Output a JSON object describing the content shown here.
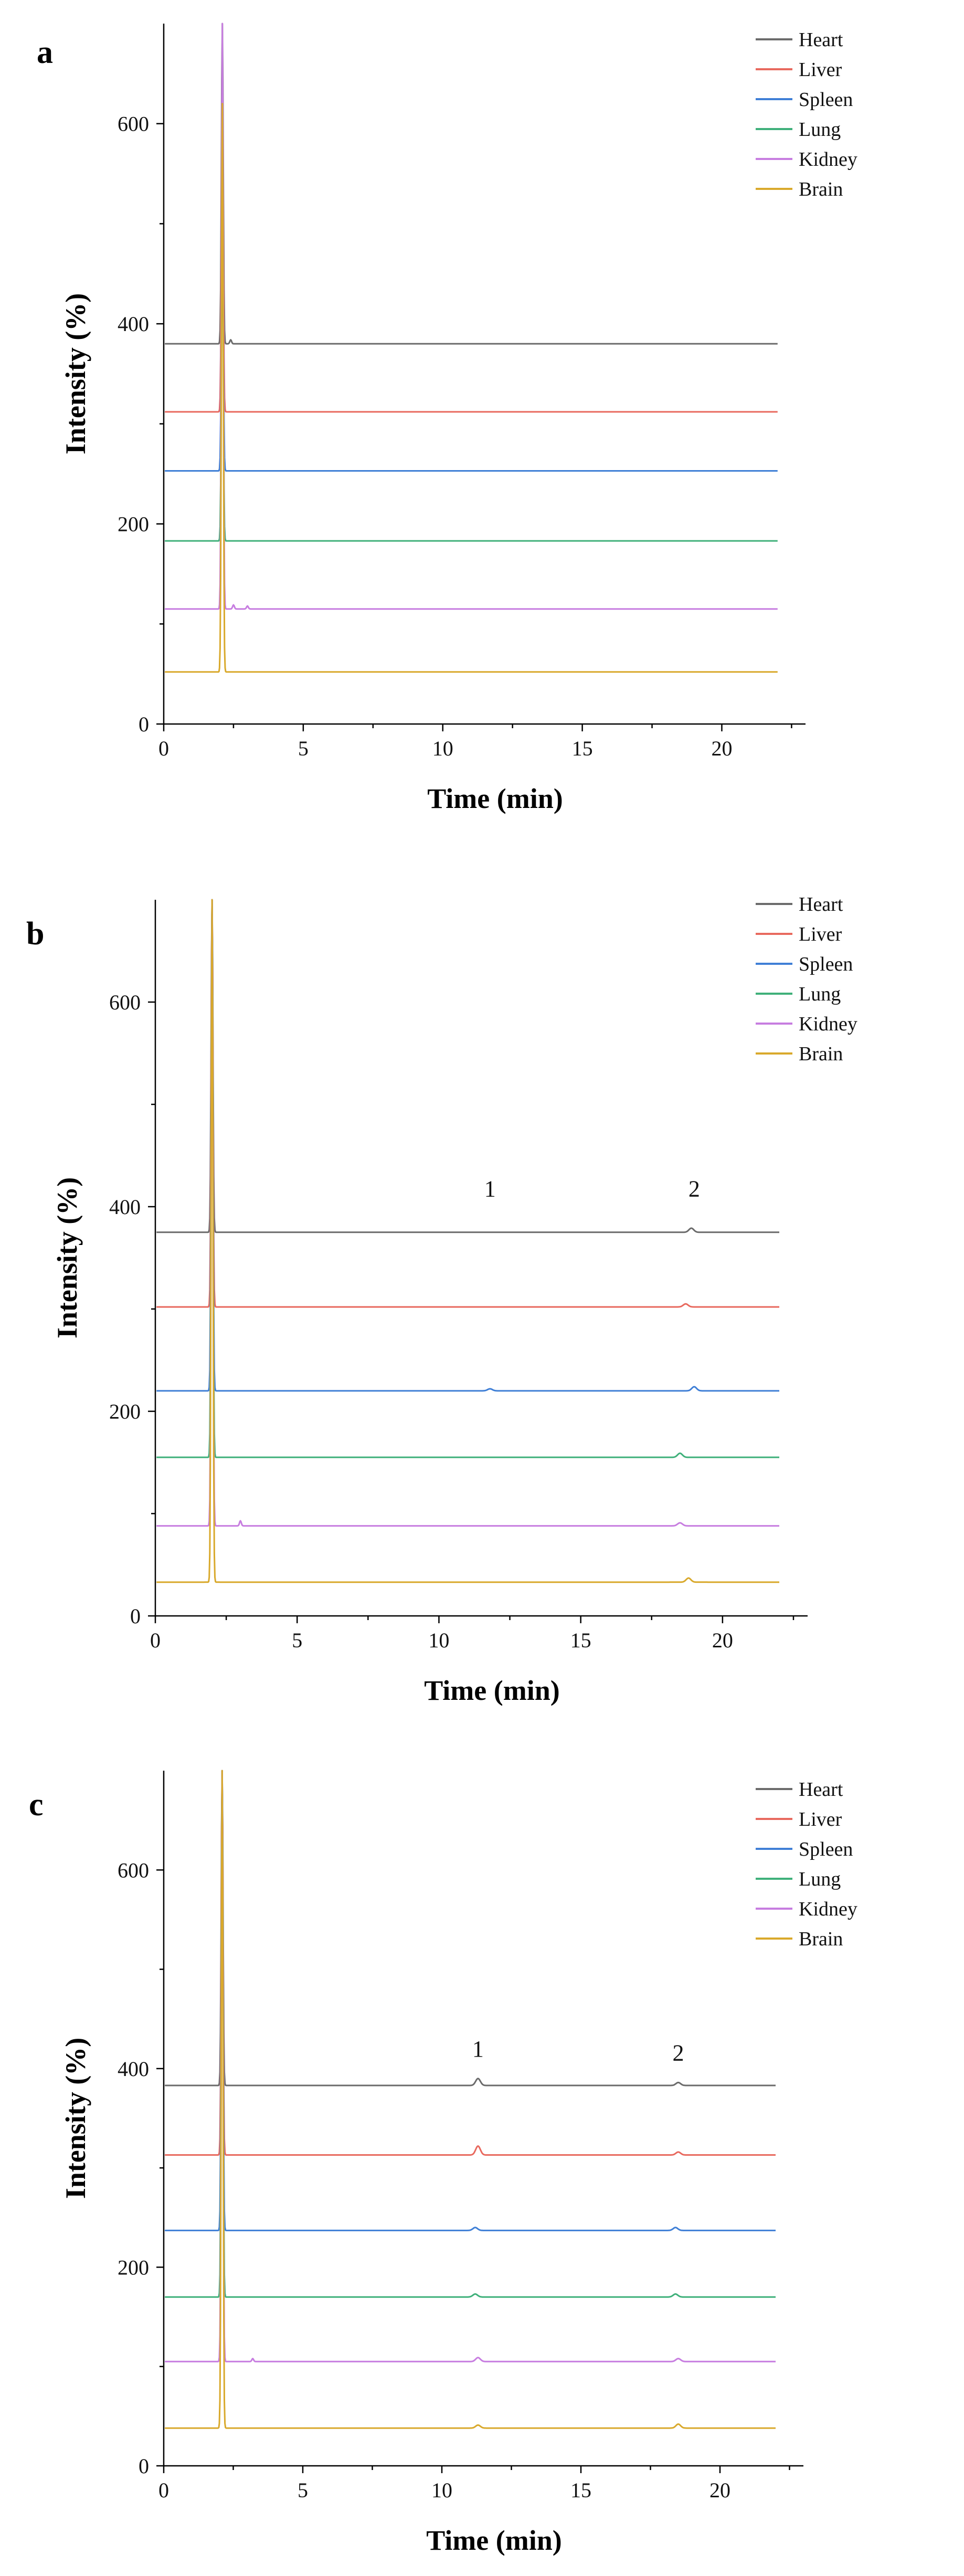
{
  "chart_data": [
    {
      "panel": "a",
      "type": "line",
      "title": "",
      "xlabel": "Time (min)",
      "ylabel": "Intensity (%)",
      "xlim": [
        0,
        23
      ],
      "ylim": [
        0,
        700
      ],
      "xticks": [
        0,
        5,
        10,
        15,
        20
      ],
      "yticks": [
        0,
        200,
        400,
        600
      ],
      "legend_position": "top-right",
      "annotations": [],
      "series": [
        {
          "name": "Heart",
          "color": "#6b6b6b",
          "baseline": 380,
          "peaks": [
            [
              2.1,
              700
            ],
            [
              2.4,
              384
            ]
          ]
        },
        {
          "name": "Liver",
          "color": "#e8695e",
          "baseline": 312,
          "peaks": [
            [
              2.1,
              640
            ]
          ]
        },
        {
          "name": "Spleen",
          "color": "#3f7fd6",
          "baseline": 253,
          "peaks": [
            [
              2.1,
              560
            ]
          ]
        },
        {
          "name": "Lung",
          "color": "#3fb07a",
          "baseline": 183,
          "peaks": [
            [
              2.1,
              520
            ]
          ]
        },
        {
          "name": "Kidney",
          "color": "#c77de0",
          "baseline": 115,
          "peaks": [
            [
              2.1,
              700
            ],
            [
              2.5,
              119
            ],
            [
              3.0,
              118
            ]
          ]
        },
        {
          "name": "Brain",
          "color": "#d9a92c",
          "baseline": 52,
          "peaks": [
            [
              2.1,
              620
            ]
          ]
        }
      ]
    },
    {
      "panel": "b",
      "type": "line",
      "title": "",
      "xlabel": "Time (min)",
      "ylabel": "Intensity (%)",
      "xlim": [
        0,
        23
      ],
      "ylim": [
        0,
        700
      ],
      "xticks": [
        0,
        5,
        10,
        15,
        20
      ],
      "yticks": [
        0,
        200,
        400,
        600
      ],
      "legend_position": "top-right",
      "annotations": [
        {
          "text": "1",
          "x": 11.8,
          "y": 410
        },
        {
          "text": "2",
          "x": 19.0,
          "y": 410
        }
      ],
      "series": [
        {
          "name": "Heart",
          "color": "#6b6b6b",
          "baseline": 375,
          "peaks": [
            [
              2.0,
              700
            ],
            [
              18.9,
              379
            ]
          ]
        },
        {
          "name": "Liver",
          "color": "#e8695e",
          "baseline": 302,
          "peaks": [
            [
              2.0,
              700
            ],
            [
              18.7,
              305
            ]
          ]
        },
        {
          "name": "Spleen",
          "color": "#3f7fd6",
          "baseline": 220,
          "peaks": [
            [
              2.0,
              700
            ],
            [
              11.8,
              222
            ],
            [
              19.0,
              224
            ]
          ]
        },
        {
          "name": "Lung",
          "color": "#3fb07a",
          "baseline": 155,
          "peaks": [
            [
              2.0,
              700
            ],
            [
              18.5,
              159
            ]
          ]
        },
        {
          "name": "Kidney",
          "color": "#c77de0",
          "baseline": 88,
          "peaks": [
            [
              2.0,
              700
            ],
            [
              3.0,
              93
            ],
            [
              18.5,
              91
            ]
          ]
        },
        {
          "name": "Brain",
          "color": "#d9a92c",
          "baseline": 33,
          "peaks": [
            [
              2.0,
              700
            ],
            [
              18.8,
              37
            ]
          ]
        }
      ]
    },
    {
      "panel": "c",
      "type": "line",
      "title": "",
      "xlabel": "Time (min)",
      "ylabel": "Intensity (%)",
      "xlim": [
        0,
        23
      ],
      "ylim": [
        0,
        700
      ],
      "xticks": [
        0,
        5,
        10,
        15,
        20
      ],
      "yticks": [
        0,
        200,
        400,
        600
      ],
      "legend_position": "top-right",
      "annotations": [
        {
          "text": "1",
          "x": 11.3,
          "y": 412
        },
        {
          "text": "2",
          "x": 18.5,
          "y": 408
        }
      ],
      "series": [
        {
          "name": "Heart",
          "color": "#6b6b6b",
          "baseline": 383,
          "peaks": [
            [
              2.1,
              700
            ],
            [
              11.3,
              390
            ],
            [
              18.5,
              386
            ]
          ]
        },
        {
          "name": "Liver",
          "color": "#e8695e",
          "baseline": 313,
          "peaks": [
            [
              2.1,
              700
            ],
            [
              11.3,
              322
            ],
            [
              18.5,
              316
            ]
          ]
        },
        {
          "name": "Spleen",
          "color": "#3f7fd6",
          "baseline": 237,
          "peaks": [
            [
              2.1,
              700
            ],
            [
              11.2,
              240
            ],
            [
              18.4,
              240
            ]
          ]
        },
        {
          "name": "Lung",
          "color": "#3fb07a",
          "baseline": 170,
          "peaks": [
            [
              2.1,
              700
            ],
            [
              11.2,
              173
            ],
            [
              18.4,
              173
            ]
          ]
        },
        {
          "name": "Kidney",
          "color": "#c77de0",
          "baseline": 105,
          "peaks": [
            [
              2.1,
              700
            ],
            [
              3.2,
              108
            ],
            [
              11.3,
              109
            ],
            [
              18.5,
              108
            ]
          ]
        },
        {
          "name": "Brain",
          "color": "#d9a92c",
          "baseline": 38,
          "peaks": [
            [
              2.1,
              700
            ],
            [
              11.3,
              41
            ],
            [
              18.5,
              42
            ]
          ]
        }
      ]
    }
  ]
}
